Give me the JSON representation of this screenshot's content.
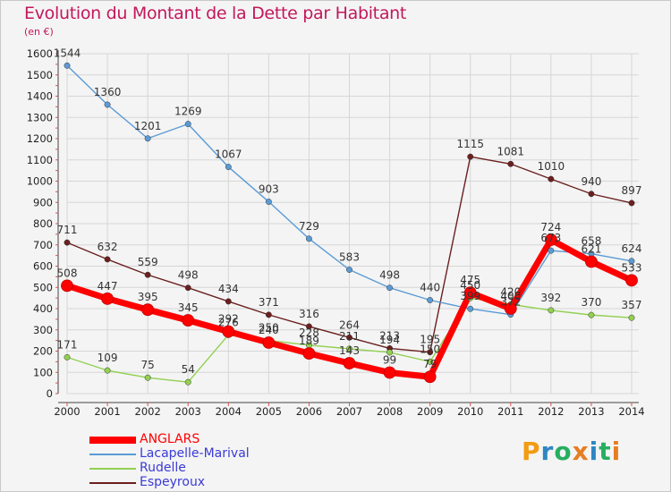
{
  "title": "Evolution du Montant de la Dette par Habitant",
  "subtitle": "(en €)",
  "logo": {
    "text": "Proxiti",
    "colors": [
      "#f39c12",
      "#2e86c1",
      "#27ae60",
      "#e67e22",
      "#2e86c1",
      "#27ae60",
      "#e67e22"
    ]
  },
  "chart_data": {
    "type": "line",
    "title": "Evolution du Montant de la Dette par Habitant",
    "ylabel": "(en €)",
    "xlabel": "",
    "ylim": [
      0,
      1600
    ],
    "yticks": [
      0,
      100,
      200,
      300,
      400,
      500,
      600,
      700,
      800,
      900,
      1000,
      1100,
      1200,
      1300,
      1400,
      1500,
      1600
    ],
    "grid": true,
    "legend_position": "bottom-left",
    "x": [
      "2000",
      "2001",
      "2002",
      "2003",
      "2004",
      "2005",
      "2006",
      "2007",
      "2008",
      "2009",
      "2010",
      "2011",
      "2012",
      "2013",
      "2014"
    ],
    "series": [
      {
        "name": "Espeyroux",
        "color": "#6b1f1f",
        "values": [
          711,
          632,
          559,
          498,
          434,
          371,
          316,
          264,
          213,
          195,
          1115,
          1081,
          1010,
          940,
          897
        ]
      },
      {
        "name": "Lacapelle-Marival",
        "color": "#5b9bd5",
        "values": [
          1544,
          1360,
          1201,
          1269,
          1067,
          903,
          729,
          583,
          498,
          440,
          399,
          372,
          673,
          658,
          624
        ]
      },
      {
        "name": "Rudelle",
        "color": "#92d050",
        "values": [
          171,
          109,
          75,
          54,
          276,
          250,
          228,
          211,
          194,
          150,
          450,
          420,
          392,
          370,
          357
        ]
      },
      {
        "name": "ANGLARS",
        "color": "#ff0000",
        "values": [
          508,
          447,
          395,
          345,
          292,
          240,
          189,
          143,
          99,
          79,
          475,
          400,
          724,
          621,
          533
        ]
      }
    ]
  }
}
